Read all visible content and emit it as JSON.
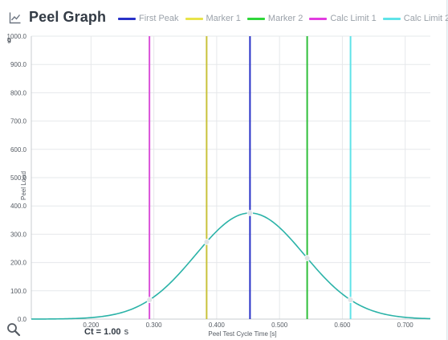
{
  "header": {
    "title": "Peel Graph",
    "icon": "line-chart-icon"
  },
  "chart_data": {
    "type": "line",
    "title": "Peel Graph",
    "xlabel": "Peel Test Cycle Time [s]",
    "ylabel": "Peel Load",
    "y_unit": "g",
    "xlim": [
      0.105,
      0.74
    ],
    "ylim": [
      0,
      1000
    ],
    "x_ticks": [
      0.2,
      0.3,
      0.4,
      0.5,
      0.6,
      0.7
    ],
    "x_tick_labels": [
      "0.200",
      "0.300",
      "0.400",
      "0.500",
      "0.600",
      "0.700"
    ],
    "y_ticks": [
      0,
      100,
      200,
      300,
      400,
      500,
      600,
      700,
      800,
      900,
      1000
    ],
    "y_tick_labels": [
      "0.0",
      "100.0",
      "200.0",
      "300.0",
      "400.0",
      "500.0",
      "600.0",
      "700.0",
      "800.0",
      "900.0",
      "1000.0"
    ],
    "grid": true,
    "legend_position": "top",
    "series": [
      {
        "name": "Peel Load",
        "color": "#2bb3a8",
        "x": [
          0.105,
          0.12,
          0.14,
          0.16,
          0.18,
          0.2,
          0.22,
          0.24,
          0.26,
          0.28,
          0.293,
          0.31,
          0.33,
          0.35,
          0.37,
          0.384,
          0.4,
          0.42,
          0.44,
          0.453,
          0.47,
          0.49,
          0.51,
          0.53,
          0.544,
          0.56,
          0.58,
          0.6,
          0.613,
          0.63,
          0.65,
          0.67,
          0.69,
          0.71,
          0.74
        ],
        "y": [
          2,
          3,
          5,
          9,
          16,
          27,
          43,
          64,
          89,
          118,
          92,
          175,
          225,
          276,
          316,
          286,
          356,
          368,
          373,
          375,
          371,
          356,
          330,
          293,
          238,
          217,
          166,
          121,
          93,
          68,
          42,
          25,
          14,
          8,
          3
        ]
      }
    ],
    "markers": [
      {
        "name": "First Peak",
        "x": 0.453,
        "color": "#2832c8"
      },
      {
        "name": "Marker 1",
        "x": 0.384,
        "color": "#c9c23a"
      },
      {
        "name": "Marker 2",
        "x": 0.544,
        "color": "#2fbf3a"
      },
      {
        "name": "Calc Limit 1",
        "x": 0.293,
        "color": "#d94fd8"
      },
      {
        "name": "Calc Limit 2",
        "x": 0.613,
        "color": "#5fe3e8"
      }
    ]
  },
  "legend": [
    {
      "label": "First Peak",
      "color": "#2832c8"
    },
    {
      "label": "Marker 1",
      "color": "#e8e34a"
    },
    {
      "label": "Marker 2",
      "color": "#2fd63a"
    },
    {
      "label": "Calc Limit 1",
      "color": "#e23ce0"
    },
    {
      "label": "Calc Limit 2",
      "color": "#5fe3e8"
    }
  ],
  "footer": {
    "ct_label": "Ct = 1.00",
    "ct_unit": "s",
    "zoom_icon": "magnifier-icon"
  }
}
